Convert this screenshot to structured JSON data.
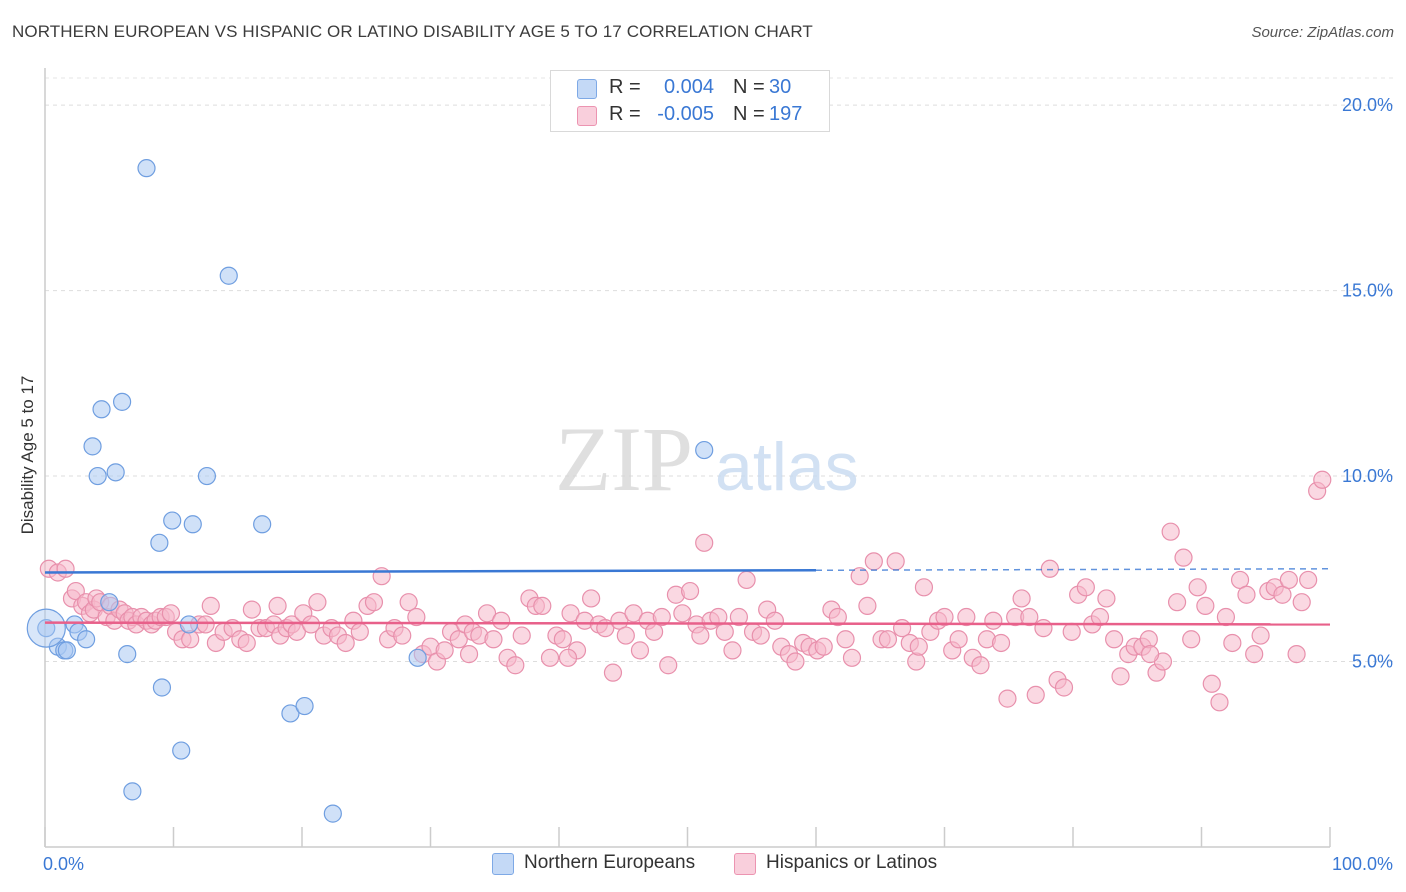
{
  "title": "NORTHERN EUROPEAN VS HISPANIC OR LATINO DISABILITY AGE 5 TO 17 CORRELATION CHART",
  "source": "Source: ZipAtlas.com",
  "watermark": {
    "zip": "ZIP",
    "atlas": "atlas"
  },
  "legend": {
    "rows": [
      {
        "r_label": "R =",
        "r_value": "0.004",
        "n_label": "N =",
        "n_value": "30",
        "color": "#a9c8f2"
      },
      {
        "r_label": "R =",
        "r_value": "-0.005",
        "n_label": "N =",
        "n_value": "197",
        "color": "#f5b8cb"
      }
    ]
  },
  "bottom_legend": [
    {
      "label": "Northern Europeans",
      "color": "#a9c8f2"
    },
    {
      "label": "Hispanics or Latinos",
      "color": "#f5b8cb"
    }
  ],
  "chart_data": {
    "type": "scatter",
    "title": "NORTHERN EUROPEAN VS HISPANIC OR LATINO DISABILITY AGE 5 TO 17 CORRELATION CHART",
    "xlabel": "",
    "ylabel": "Disability Age 5 to 17",
    "xlim": [
      0,
      100
    ],
    "ylim": [
      0,
      21
    ],
    "x_tick_labels": [
      "0.0%",
      "100.0%"
    ],
    "y_ticks": [
      5,
      10,
      15,
      20
    ],
    "y_tick_labels": [
      "5.0%",
      "10.0%",
      "15.0%",
      "20.0%"
    ],
    "grid": true,
    "series": [
      {
        "name": "Northern Europeans",
        "color": "#a9c8f2",
        "stroke": "#6f9ee0",
        "trend": {
          "x0": 0,
          "y0": 7.4,
          "x1": 100,
          "y1": 7.5,
          "solid_until_x": 60,
          "color": "#3a78d4"
        },
        "points": [
          [
            0.1,
            5.9
          ],
          [
            1.0,
            5.4
          ],
          [
            1.5,
            5.3
          ],
          [
            1.7,
            5.3
          ],
          [
            2.3,
            6.0
          ],
          [
            2.6,
            5.8
          ],
          [
            3.2,
            5.6
          ],
          [
            3.7,
            10.8
          ],
          [
            4.1,
            10.0
          ],
          [
            4.4,
            11.8
          ],
          [
            5.0,
            6.6
          ],
          [
            5.5,
            10.1
          ],
          [
            6.0,
            12.0
          ],
          [
            6.4,
            5.2
          ],
          [
            6.8,
            1.5
          ],
          [
            7.9,
            18.3
          ],
          [
            8.9,
            8.2
          ],
          [
            9.1,
            4.3
          ],
          [
            9.9,
            8.8
          ],
          [
            10.6,
            2.6
          ],
          [
            11.2,
            6.0
          ],
          [
            11.5,
            8.7
          ],
          [
            12.6,
            10.0
          ],
          [
            14.3,
            15.4
          ],
          [
            16.9,
            8.7
          ],
          [
            19.1,
            3.6
          ],
          [
            20.2,
            3.8
          ],
          [
            22.4,
            0.9
          ],
          [
            29.0,
            5.1
          ],
          [
            51.3,
            10.7
          ]
        ]
      },
      {
        "name": "Hispanics or Latinos",
        "color": "#f5b8cb",
        "stroke": "#e890ac",
        "trend": {
          "x0": 0,
          "y0": 6.05,
          "x1": 100,
          "y1": 6.0,
          "solid_until_x": 100,
          "color": "#e8608a"
        },
        "points": [
          [
            0.3,
            7.5
          ],
          [
            1.0,
            7.4
          ],
          [
            1.6,
            7.5
          ],
          [
            2.1,
            6.7
          ],
          [
            2.4,
            6.9
          ],
          [
            2.9,
            6.5
          ],
          [
            3.2,
            6.6
          ],
          [
            3.5,
            6.3
          ],
          [
            3.8,
            6.4
          ],
          [
            4.0,
            6.7
          ],
          [
            4.3,
            6.6
          ],
          [
            4.8,
            6.2
          ],
          [
            5.1,
            6.5
          ],
          [
            5.4,
            6.1
          ],
          [
            5.8,
            6.4
          ],
          [
            6.2,
            6.3
          ],
          [
            6.5,
            6.1
          ],
          [
            6.8,
            6.2
          ],
          [
            7.1,
            6.0
          ],
          [
            7.5,
            6.2
          ],
          [
            7.9,
            6.1
          ],
          [
            8.3,
            6.0
          ],
          [
            8.6,
            6.1
          ],
          [
            9.0,
            6.2
          ],
          [
            9.4,
            6.2
          ],
          [
            9.8,
            6.3
          ],
          [
            10.2,
            5.8
          ],
          [
            10.7,
            5.6
          ],
          [
            11.3,
            5.6
          ],
          [
            12.0,
            6.0
          ],
          [
            12.5,
            6.0
          ],
          [
            12.9,
            6.5
          ],
          [
            13.3,
            5.5
          ],
          [
            13.9,
            5.8
          ],
          [
            14.6,
            5.9
          ],
          [
            15.2,
            5.6
          ],
          [
            15.7,
            5.5
          ],
          [
            16.1,
            6.4
          ],
          [
            16.7,
            5.9
          ],
          [
            17.2,
            5.9
          ],
          [
            17.8,
            6.0
          ],
          [
            18.3,
            5.7
          ],
          [
            18.8,
            5.9
          ],
          [
            19.2,
            6.0
          ],
          [
            19.6,
            5.8
          ],
          [
            20.1,
            6.3
          ],
          [
            20.7,
            6.0
          ],
          [
            21.2,
            6.6
          ],
          [
            21.7,
            5.7
          ],
          [
            22.3,
            5.9
          ],
          [
            22.8,
            5.7
          ],
          [
            23.4,
            5.5
          ],
          [
            24.0,
            6.1
          ],
          [
            24.5,
            5.8
          ],
          [
            25.1,
            6.5
          ],
          [
            25.6,
            6.6
          ],
          [
            26.2,
            7.3
          ],
          [
            26.7,
            5.6
          ],
          [
            27.2,
            5.9
          ],
          [
            27.8,
            5.7
          ],
          [
            28.3,
            6.6
          ],
          [
            28.9,
            6.2
          ],
          [
            29.4,
            5.2
          ],
          [
            30.0,
            5.4
          ],
          [
            30.5,
            5.0
          ],
          [
            31.1,
            5.3
          ],
          [
            31.6,
            5.8
          ],
          [
            32.2,
            5.6
          ],
          [
            32.7,
            6.0
          ],
          [
            33.3,
            5.8
          ],
          [
            33.8,
            5.7
          ],
          [
            34.4,
            6.3
          ],
          [
            34.9,
            5.6
          ],
          [
            35.5,
            6.1
          ],
          [
            36.0,
            5.1
          ],
          [
            36.6,
            4.9
          ],
          [
            37.1,
            5.7
          ],
          [
            37.7,
            6.7
          ],
          [
            38.2,
            6.5
          ],
          [
            38.7,
            6.5
          ],
          [
            39.3,
            5.1
          ],
          [
            39.8,
            5.7
          ],
          [
            40.3,
            5.6
          ],
          [
            40.9,
            6.3
          ],
          [
            41.4,
            5.3
          ],
          [
            42.0,
            6.1
          ],
          [
            42.5,
            6.7
          ],
          [
            43.1,
            6.0
          ],
          [
            43.6,
            5.9
          ],
          [
            44.2,
            4.7
          ],
          [
            44.7,
            6.1
          ],
          [
            45.2,
            5.7
          ],
          [
            45.8,
            6.3
          ],
          [
            46.3,
            5.3
          ],
          [
            46.9,
            6.1
          ],
          [
            47.4,
            5.8
          ],
          [
            48.0,
            6.2
          ],
          [
            48.5,
            4.9
          ],
          [
            49.1,
            6.8
          ],
          [
            49.6,
            6.3
          ],
          [
            50.2,
            6.9
          ],
          [
            50.7,
            6.0
          ],
          [
            51.3,
            8.2
          ],
          [
            51.8,
            6.1
          ],
          [
            52.4,
            6.2
          ],
          [
            52.9,
            5.8
          ],
          [
            53.5,
            5.3
          ],
          [
            54.0,
            6.2
          ],
          [
            54.6,
            7.2
          ],
          [
            55.1,
            5.8
          ],
          [
            55.7,
            5.7
          ],
          [
            56.2,
            6.4
          ],
          [
            56.8,
            6.1
          ],
          [
            57.3,
            5.4
          ],
          [
            57.9,
            5.2
          ],
          [
            58.4,
            5.0
          ],
          [
            59.0,
            5.5
          ],
          [
            59.5,
            5.4
          ],
          [
            60.1,
            5.3
          ],
          [
            60.6,
            5.4
          ],
          [
            61.2,
            6.4
          ],
          [
            61.7,
            6.2
          ],
          [
            62.3,
            5.6
          ],
          [
            62.8,
            5.1
          ],
          [
            63.4,
            7.3
          ],
          [
            64.0,
            6.5
          ],
          [
            64.5,
            7.7
          ],
          [
            65.1,
            5.6
          ],
          [
            65.6,
            5.6
          ],
          [
            66.2,
            7.7
          ],
          [
            66.7,
            5.9
          ],
          [
            67.3,
            5.5
          ],
          [
            67.8,
            5.0
          ],
          [
            68.4,
            7.0
          ],
          [
            68.9,
            5.8
          ],
          [
            69.5,
            6.1
          ],
          [
            70.0,
            6.2
          ],
          [
            70.6,
            5.3
          ],
          [
            71.1,
            5.6
          ],
          [
            71.7,
            6.2
          ],
          [
            72.2,
            5.1
          ],
          [
            72.8,
            4.9
          ],
          [
            73.3,
            5.6
          ],
          [
            73.8,
            6.1
          ],
          [
            74.4,
            5.5
          ],
          [
            74.9,
            4.0
          ],
          [
            75.5,
            6.2
          ],
          [
            76.0,
            6.7
          ],
          [
            76.6,
            6.2
          ],
          [
            77.1,
            4.1
          ],
          [
            77.7,
            5.9
          ],
          [
            78.2,
            7.5
          ],
          [
            78.8,
            4.5
          ],
          [
            79.3,
            4.3
          ],
          [
            79.9,
            5.8
          ],
          [
            80.4,
            6.8
          ],
          [
            81.0,
            7.0
          ],
          [
            81.5,
            6.0
          ],
          [
            82.1,
            6.2
          ],
          [
            82.6,
            6.7
          ],
          [
            83.2,
            5.6
          ],
          [
            83.7,
            4.6
          ],
          [
            84.3,
            5.2
          ],
          [
            84.8,
            5.4
          ],
          [
            85.4,
            5.4
          ],
          [
            85.9,
            5.6
          ],
          [
            86.5,
            4.7
          ],
          [
            87.0,
            5.0
          ],
          [
            87.6,
            8.5
          ],
          [
            88.1,
            6.6
          ],
          [
            88.6,
            7.8
          ],
          [
            89.2,
            5.6
          ],
          [
            89.7,
            7.0
          ],
          [
            90.3,
            6.5
          ],
          [
            90.8,
            4.4
          ],
          [
            91.4,
            3.9
          ],
          [
            91.9,
            6.2
          ],
          [
            92.4,
            5.5
          ],
          [
            93.0,
            7.2
          ],
          [
            93.5,
            6.8
          ],
          [
            94.1,
            5.2
          ],
          [
            94.6,
            5.7
          ],
          [
            95.2,
            6.9
          ],
          [
            95.7,
            7.0
          ],
          [
            96.3,
            6.8
          ],
          [
            96.8,
            7.2
          ],
          [
            97.4,
            5.2
          ],
          [
            97.8,
            6.6
          ],
          [
            98.3,
            7.2
          ],
          [
            99.0,
            9.6
          ],
          [
            99.4,
            9.9
          ],
          [
            51.0,
            5.7
          ],
          [
            40.7,
            5.1
          ],
          [
            18.1,
            6.5
          ],
          [
            68.0,
            5.4
          ],
          [
            86.0,
            5.2
          ],
          [
            33.0,
            5.2
          ]
        ]
      }
    ]
  }
}
